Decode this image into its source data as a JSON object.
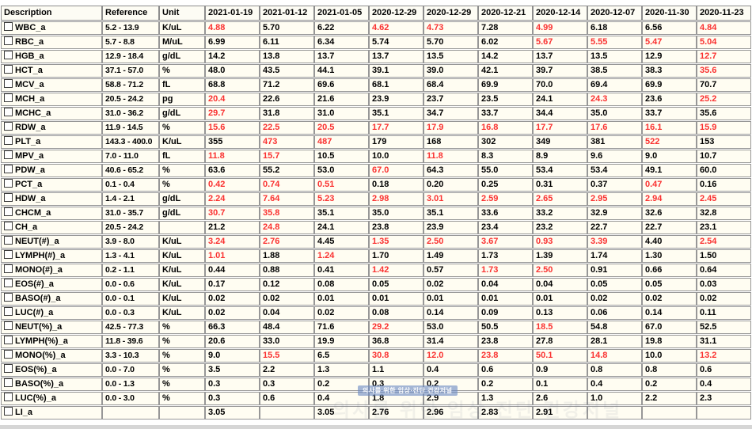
{
  "colors": {
    "out_of_range_value": "#fa3130",
    "normal_value": "#000000",
    "grid_border": "#979797",
    "cell_background": "#fffdf2"
  },
  "watermark": {
    "badge_text": "의사를 위한 임상·진단 건강저널",
    "faint_text": "의사를 위한 임상·진단 건강저널"
  },
  "table": {
    "columns": [
      "Description",
      "Reference",
      "Unit",
      "2021-01-19",
      "2021-01-12",
      "2021-01-05",
      "2020-12-29",
      "2020-12-29",
      "2020-12-21",
      "2020-12-14",
      "2020-12-07",
      "2020-11-30",
      "2020-11-23"
    ],
    "rows": [
      {
        "description": "WBC_a",
        "reference": "5.2 - 13.9",
        "unit": "K/uL",
        "values": [
          "4.88",
          "5.70",
          "6.22",
          "4.62",
          "4.73",
          "7.28",
          "4.99",
          "6.18",
          "6.56",
          "4.84"
        ],
        "flags": [
          1,
          0,
          0,
          1,
          1,
          0,
          1,
          0,
          0,
          1
        ]
      },
      {
        "description": "RBC_a",
        "reference": "5.7 - 8.8",
        "unit": "M/uL",
        "values": [
          "6.99",
          "6.11",
          "6.34",
          "5.74",
          "5.70",
          "6.02",
          "5.67",
          "5.55",
          "5.47",
          "5.04"
        ],
        "flags": [
          0,
          0,
          0,
          0,
          0,
          0,
          1,
          1,
          1,
          1
        ]
      },
      {
        "description": "HGB_a",
        "reference": "12.9 - 18.4",
        "unit": "g/dL",
        "values": [
          "14.2",
          "13.8",
          "13.7",
          "13.7",
          "13.5",
          "14.2",
          "13.7",
          "13.5",
          "12.9",
          "12.7"
        ],
        "flags": [
          0,
          0,
          0,
          0,
          0,
          0,
          0,
          0,
          0,
          1
        ]
      },
      {
        "description": "HCT_a",
        "reference": "37.1 - 57.0",
        "unit": "%",
        "values": [
          "48.0",
          "43.5",
          "44.1",
          "39.1",
          "39.0",
          "42.1",
          "39.7",
          "38.5",
          "38.3",
          "35.6"
        ],
        "flags": [
          0,
          0,
          0,
          0,
          0,
          0,
          0,
          0,
          0,
          1
        ]
      },
      {
        "description": "MCV_a",
        "reference": "58.8 - 71.2",
        "unit": "fL",
        "values": [
          "68.8",
          "71.2",
          "69.6",
          "68.1",
          "68.4",
          "69.9",
          "70.0",
          "69.4",
          "69.9",
          "70.7"
        ],
        "flags": [
          0,
          0,
          0,
          0,
          0,
          0,
          0,
          0,
          0,
          0
        ]
      },
      {
        "description": "MCH_a",
        "reference": "20.5 - 24.2",
        "unit": "pg",
        "values": [
          "20.4",
          "22.6",
          "21.6",
          "23.9",
          "23.7",
          "23.5",
          "24.1",
          "24.3",
          "23.6",
          "25.2"
        ],
        "flags": [
          1,
          0,
          0,
          0,
          0,
          0,
          0,
          1,
          0,
          1
        ]
      },
      {
        "description": "MCHC_a",
        "reference": "31.0 - 36.2",
        "unit": "g/dL",
        "values": [
          "29.7",
          "31.8",
          "31.0",
          "35.1",
          "34.7",
          "33.7",
          "34.4",
          "35.0",
          "33.7",
          "35.6"
        ],
        "flags": [
          1,
          0,
          0,
          0,
          0,
          0,
          0,
          0,
          0,
          0
        ]
      },
      {
        "description": "RDW_a",
        "reference": "11.9 - 14.5",
        "unit": "%",
        "values": [
          "15.6",
          "22.5",
          "20.5",
          "17.7",
          "17.9",
          "16.8",
          "17.7",
          "17.6",
          "16.1",
          "15.9"
        ],
        "flags": [
          1,
          1,
          1,
          1,
          1,
          1,
          1,
          1,
          1,
          1
        ]
      },
      {
        "description": "PLT_a",
        "reference": "143.3 - 400.0",
        "unit": "K/uL",
        "values": [
          "355",
          "473",
          "487",
          "179",
          "168",
          "302",
          "349",
          "381",
          "522",
          "153"
        ],
        "flags": [
          0,
          1,
          1,
          0,
          0,
          0,
          0,
          0,
          1,
          0
        ]
      },
      {
        "description": "MPV_a",
        "reference": "7.0 - 11.0",
        "unit": "fL",
        "values": [
          "11.8",
          "15.7",
          "10.5",
          "10.0",
          "11.8",
          "8.3",
          "8.9",
          "9.6",
          "9.0",
          "10.7"
        ],
        "flags": [
          1,
          1,
          0,
          0,
          1,
          0,
          0,
          0,
          0,
          0
        ]
      },
      {
        "description": "PDW_a",
        "reference": "40.6 - 65.2",
        "unit": "%",
        "values": [
          "63.6",
          "55.2",
          "53.0",
          "67.0",
          "64.3",
          "55.0",
          "53.4",
          "53.4",
          "49.1",
          "60.0"
        ],
        "flags": [
          0,
          0,
          0,
          1,
          0,
          0,
          0,
          0,
          0,
          0
        ]
      },
      {
        "description": "PCT_a",
        "reference": "0.1 - 0.4",
        "unit": "%",
        "values": [
          "0.42",
          "0.74",
          "0.51",
          "0.18",
          "0.20",
          "0.25",
          "0.31",
          "0.37",
          "0.47",
          "0.16"
        ],
        "flags": [
          1,
          1,
          1,
          0,
          0,
          0,
          0,
          0,
          1,
          0
        ]
      },
      {
        "description": "HDW_a",
        "reference": "1.4 - 2.1",
        "unit": "g/dL",
        "values": [
          "2.24",
          "7.64",
          "5.23",
          "2.98",
          "3.01",
          "2.59",
          "2.65",
          "2.95",
          "2.94",
          "2.45"
        ],
        "flags": [
          1,
          1,
          1,
          1,
          1,
          1,
          1,
          1,
          1,
          1
        ]
      },
      {
        "description": "CHCM_a",
        "reference": "31.0 - 35.7",
        "unit": "g/dL",
        "values": [
          "30.7",
          "35.8",
          "35.1",
          "35.0",
          "35.1",
          "33.6",
          "33.2",
          "32.9",
          "32.6",
          "32.8"
        ],
        "flags": [
          1,
          1,
          0,
          0,
          0,
          0,
          0,
          0,
          0,
          0
        ]
      },
      {
        "description": "CH_a",
        "reference": "20.5 - 24.2",
        "unit": "",
        "values": [
          "21.2",
          "24.8",
          "24.1",
          "23.8",
          "23.9",
          "23.4",
          "23.2",
          "22.7",
          "22.7",
          "23.1"
        ],
        "flags": [
          0,
          1,
          0,
          0,
          0,
          0,
          0,
          0,
          0,
          0
        ]
      },
      {
        "description": "NEUT(#)_a",
        "reference": "3.9 - 8.0",
        "unit": "K/uL",
        "values": [
          "3.24",
          "2.76",
          "4.45",
          "1.35",
          "2.50",
          "3.67",
          "0.93",
          "3.39",
          "4.40",
          "2.54"
        ],
        "flags": [
          1,
          1,
          0,
          1,
          1,
          1,
          1,
          1,
          0,
          1
        ]
      },
      {
        "description": "LYMPH(#)_a",
        "reference": "1.3 - 4.1",
        "unit": "K/uL",
        "values": [
          "1.01",
          "1.88",
          "1.24",
          "1.70",
          "1.49",
          "1.73",
          "1.39",
          "1.74",
          "1.30",
          "1.50"
        ],
        "flags": [
          1,
          0,
          1,
          0,
          0,
          0,
          0,
          0,
          0,
          0
        ]
      },
      {
        "description": "MONO(#)_a",
        "reference": "0.2 - 1.1",
        "unit": "K/uL",
        "values": [
          "0.44",
          "0.88",
          "0.41",
          "1.42",
          "0.57",
          "1.73",
          "2.50",
          "0.91",
          "0.66",
          "0.64"
        ],
        "flags": [
          0,
          0,
          0,
          1,
          0,
          1,
          1,
          0,
          0,
          0
        ]
      },
      {
        "description": "EOS(#)_a",
        "reference": "0.0 - 0.6",
        "unit": "K/uL",
        "values": [
          "0.17",
          "0.12",
          "0.08",
          "0.05",
          "0.02",
          "0.04",
          "0.04",
          "0.05",
          "0.05",
          "0.03"
        ],
        "flags": [
          0,
          0,
          0,
          0,
          0,
          0,
          0,
          0,
          0,
          0
        ]
      },
      {
        "description": "BASO(#)_a",
        "reference": "0.0 - 0.1",
        "unit": "K/uL",
        "values": [
          "0.02",
          "0.02",
          "0.01",
          "0.01",
          "0.01",
          "0.01",
          "0.01",
          "0.02",
          "0.02",
          "0.02"
        ],
        "flags": [
          0,
          0,
          0,
          0,
          0,
          0,
          0,
          0,
          0,
          0
        ]
      },
      {
        "description": "LUC(#)_a",
        "reference": "0.0 - 0.3",
        "unit": "K/uL",
        "values": [
          "0.02",
          "0.04",
          "0.02",
          "0.08",
          "0.14",
          "0.09",
          "0.13",
          "0.06",
          "0.14",
          "0.11"
        ],
        "flags": [
          0,
          0,
          0,
          0,
          0,
          0,
          0,
          0,
          0,
          0
        ]
      },
      {
        "description": "NEUT(%)_a",
        "reference": "42.5 - 77.3",
        "unit": "%",
        "values": [
          "66.3",
          "48.4",
          "71.6",
          "29.2",
          "53.0",
          "50.5",
          "18.5",
          "54.8",
          "67.0",
          "52.5"
        ],
        "flags": [
          0,
          0,
          0,
          1,
          0,
          0,
          1,
          0,
          0,
          0
        ]
      },
      {
        "description": "LYMPH(%)_a",
        "reference": "11.8 - 39.6",
        "unit": "%",
        "values": [
          "20.6",
          "33.0",
          "19.9",
          "36.8",
          "31.4",
          "23.8",
          "27.8",
          "28.1",
          "19.8",
          "31.1"
        ],
        "flags": [
          0,
          0,
          0,
          0,
          0,
          0,
          0,
          0,
          0,
          0
        ]
      },
      {
        "description": "MONO(%)_a",
        "reference": "3.3 - 10.3",
        "unit": "%",
        "values": [
          "9.0",
          "15.5",
          "6.5",
          "30.8",
          "12.0",
          "23.8",
          "50.1",
          "14.8",
          "10.0",
          "13.2"
        ],
        "flags": [
          0,
          1,
          0,
          1,
          1,
          1,
          1,
          1,
          0,
          1
        ]
      },
      {
        "description": "EOS(%)_a",
        "reference": "0.0 - 7.0",
        "unit": "%",
        "values": [
          "3.5",
          "2.2",
          "1.3",
          "1.1",
          "0.4",
          "0.6",
          "0.9",
          "0.8",
          "0.8",
          "0.6"
        ],
        "flags": [
          0,
          0,
          0,
          0,
          0,
          0,
          0,
          0,
          0,
          0
        ]
      },
      {
        "description": "BASO(%)_a",
        "reference": "0.0 - 1.3",
        "unit": "%",
        "values": [
          "0.3",
          "0.3",
          "0.2",
          "0.3",
          "0.2",
          "0.2",
          "0.1",
          "0.4",
          "0.2",
          "0.4"
        ],
        "flags": [
          0,
          0,
          0,
          0,
          0,
          0,
          0,
          0,
          0,
          0
        ]
      },
      {
        "description": "LUC(%)_a",
        "reference": "0.0 - 3.0",
        "unit": "%",
        "values": [
          "0.3",
          "0.6",
          "0.4",
          "1.8",
          "2.9",
          "1.3",
          "2.6",
          "1.0",
          "2.2",
          "2.3"
        ],
        "flags": [
          0,
          0,
          0,
          0,
          0,
          0,
          0,
          0,
          0,
          0
        ]
      },
      {
        "description": "LI_a",
        "reference": "",
        "unit": "",
        "values": [
          "3.05",
          "",
          "3.05",
          "2.76",
          "2.96",
          "2.83",
          "2.91",
          "",
          "",
          ""
        ],
        "flags": [
          0,
          0,
          0,
          0,
          0,
          0,
          0,
          0,
          0,
          0
        ]
      }
    ]
  }
}
